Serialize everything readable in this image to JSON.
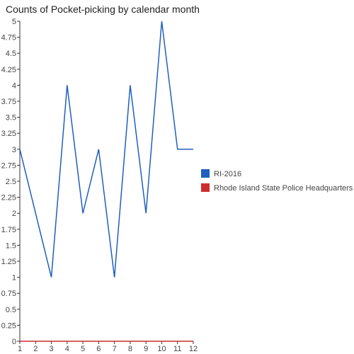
{
  "chart_data": {
    "type": "line",
    "title": "Counts of Pocket-picking by calendar month",
    "xlabel": "",
    "ylabel": "",
    "x": [
      1,
      2,
      3,
      4,
      5,
      6,
      7,
      8,
      9,
      10,
      11,
      12
    ],
    "x_tick_labels": [
      "1",
      "2",
      "3",
      "4",
      "5",
      "6",
      "7",
      "8",
      "9",
      "10",
      "11",
      "12"
    ],
    "ylim": [
      0,
      5
    ],
    "y_tick_labels": [
      "0",
      "0.25",
      "0.5",
      "0.75",
      "1",
      "1.25",
      "1.5",
      "1.75",
      "2",
      "2.25",
      "2.5",
      "2.75",
      "3",
      "3.25",
      "3.5",
      "3.75",
      "4",
      "4.25",
      "4.5",
      "4.75",
      "5"
    ],
    "grid": false,
    "legend_position": "right",
    "series": [
      {
        "name": "RI-2016",
        "color": "#1f5fbf",
        "values": [
          3,
          2,
          1,
          4,
          2,
          3,
          1,
          4,
          2,
          5,
          3,
          3
        ]
      },
      {
        "name": "Rhode Island State Police Headquarters",
        "color": "#cc2e2e",
        "values": [
          0,
          0,
          0,
          0,
          0,
          0,
          0,
          0,
          0,
          0,
          0,
          0
        ]
      }
    ]
  }
}
